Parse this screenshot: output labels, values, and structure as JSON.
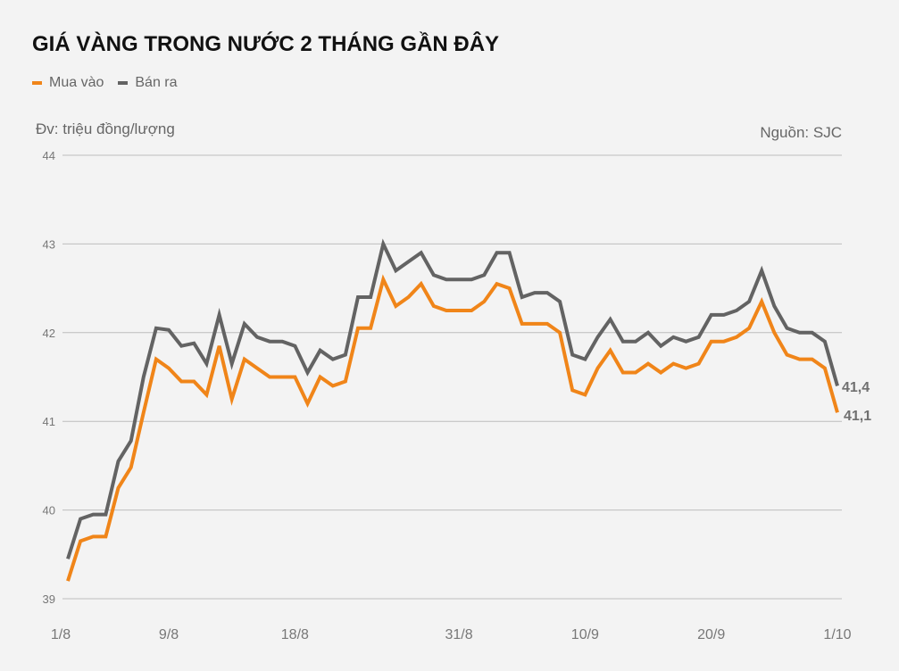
{
  "header": {
    "title": "GIÁ VÀNG TRONG NƯỚC 2 THÁNG GẦN ĐÂY",
    "unit": "Đv: triệu đồng/lượng",
    "source": "Nguồn: SJC"
  },
  "legend": [
    {
      "label": "Mua vào",
      "color": "#f08519"
    },
    {
      "label": "Bán ra",
      "color": "#636363"
    }
  ],
  "end_labels": {
    "sell": "41,4",
    "buy": "41,1"
  },
  "chart_data": {
    "type": "line",
    "title": "GIÁ VÀNG TRONG NƯỚC 2 THÁNG GẦN ĐÂY",
    "xlabel": "",
    "ylabel": "Đv: triệu đồng/lượng",
    "ylim": [
      39,
      44
    ],
    "yticks": [
      39,
      40,
      41,
      42,
      43,
      44
    ],
    "grid": true,
    "legend_position": "top-left",
    "x_tick_labels": [
      {
        "label": "1/8",
        "index": 0
      },
      {
        "label": "9/8",
        "index": 8
      },
      {
        "label": "18/8",
        "index": 18
      },
      {
        "label": "31/8",
        "index": 31
      },
      {
        "label": "10/9",
        "index": 41
      },
      {
        "label": "20/9",
        "index": 51
      },
      {
        "label": "1/10",
        "index": 61
      }
    ],
    "series": [
      {
        "name": "Mua vào",
        "color": "#f08519",
        "values": [
          39.2,
          39.65,
          39.7,
          39.7,
          40.25,
          40.48,
          41.1,
          41.7,
          41.6,
          41.45,
          41.45,
          41.3,
          41.85,
          41.25,
          41.7,
          41.6,
          41.5,
          41.5,
          41.5,
          41.2,
          41.5,
          41.4,
          41.45,
          42.05,
          42.05,
          42.6,
          42.3,
          42.4,
          42.55,
          42.3,
          42.25,
          42.25,
          42.25,
          42.35,
          42.55,
          42.5,
          42.1,
          42.1,
          42.1,
          42.0,
          41.35,
          41.3,
          41.6,
          41.8,
          41.55,
          41.55,
          41.65,
          41.55,
          41.65,
          41.6,
          41.65,
          41.9,
          41.9,
          41.95,
          42.05,
          42.35,
          42.0,
          41.75,
          41.7,
          41.7,
          41.6,
          41.1
        ]
      },
      {
        "name": "Bán ra",
        "color": "#636363",
        "values": [
          39.45,
          39.9,
          39.95,
          39.95,
          40.55,
          40.78,
          41.5,
          42.05,
          42.03,
          41.85,
          41.88,
          41.65,
          42.2,
          41.65,
          42.1,
          41.95,
          41.9,
          41.9,
          41.85,
          41.55,
          41.8,
          41.7,
          41.75,
          42.4,
          42.4,
          43.0,
          42.7,
          42.8,
          42.9,
          42.65,
          42.6,
          42.6,
          42.6,
          42.65,
          42.9,
          42.9,
          42.4,
          42.45,
          42.45,
          42.35,
          41.75,
          41.7,
          41.95,
          42.15,
          41.9,
          41.9,
          42.0,
          41.85,
          41.95,
          41.9,
          41.95,
          42.2,
          42.2,
          42.25,
          42.35,
          42.7,
          42.3,
          42.05,
          42.0,
          42.0,
          41.9,
          41.4
        ]
      }
    ]
  }
}
